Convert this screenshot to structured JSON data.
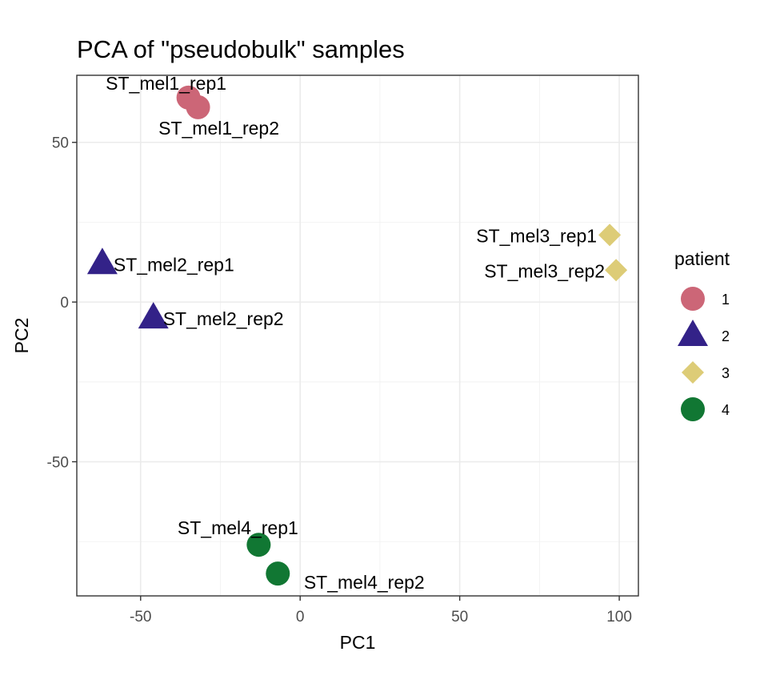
{
  "chart_data": {
    "type": "scatter",
    "title": "PCA of \"pseudobulk\" samples",
    "xlabel": "PC1",
    "ylabel": "PC2",
    "xlim": [
      -70,
      106
    ],
    "ylim": [
      -92,
      71
    ],
    "x_ticks": [
      -50,
      0,
      50,
      100
    ],
    "y_ticks": [
      -50,
      0,
      50
    ],
    "grid": true,
    "legend_position": "right",
    "legend": {
      "title": "patient",
      "entries": [
        {
          "label": "1",
          "shape": "circle",
          "color": "#CC6677"
        },
        {
          "label": "2",
          "shape": "triangle",
          "color": "#332288"
        },
        {
          "label": "3",
          "shape": "diamond",
          "color": "#DDCC77"
        },
        {
          "label": "4",
          "shape": "circle",
          "color": "#117733"
        }
      ]
    },
    "points": [
      {
        "label": "ST_mel1_rep1",
        "patient": "1",
        "x": -35,
        "y": 64
      },
      {
        "label": "ST_mel1_rep2",
        "patient": "1",
        "x": -32,
        "y": 61
      },
      {
        "label": "ST_mel2_rep1",
        "patient": "2",
        "x": -62,
        "y": 12
      },
      {
        "label": "ST_mel2_rep2",
        "patient": "2",
        "x": -46,
        "y": -5
      },
      {
        "label": "ST_mel3_rep1",
        "patient": "3",
        "x": 97,
        "y": 21
      },
      {
        "label": "ST_mel3_rep2",
        "patient": "3",
        "x": 99,
        "y": 10
      },
      {
        "label": "ST_mel4_rep1",
        "patient": "4",
        "x": -13,
        "y": -76
      },
      {
        "label": "ST_mel4_rep2",
        "patient": "4",
        "x": -7,
        "y": -85
      }
    ]
  }
}
